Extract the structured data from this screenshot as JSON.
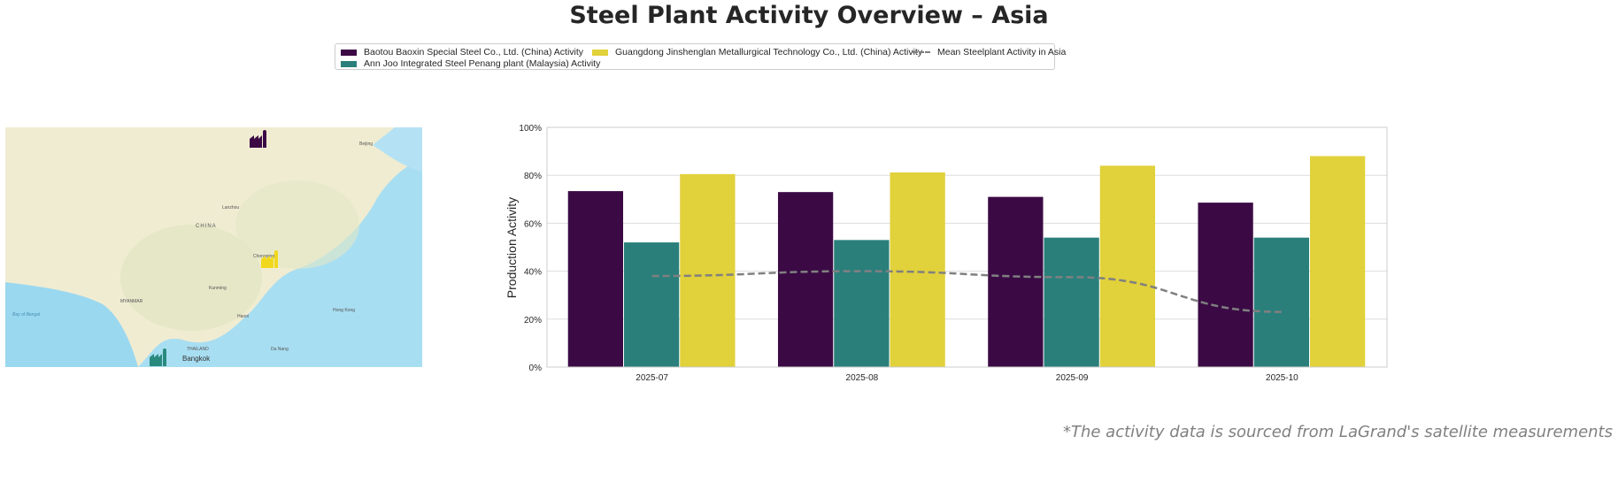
{
  "title": "Steel Plant Activity Overview – Asia",
  "legend": {
    "items": [
      {
        "label": "Baotou Baoxin Special Steel Co., Ltd. (China) Activity",
        "color": "#3b0a45"
      },
      {
        "label": "Ann Joo Integrated Steel Penang plant (Malaysia) Activity",
        "color": "#2a7f7b"
      },
      {
        "label": "Guangdong Jinshenglan Metallurgical Technology Co., Ltd. (China) Activity",
        "color": "#e1d13a"
      },
      {
        "label": "Mean Steelplant Activity in Asia",
        "color": "#808080"
      }
    ]
  },
  "map": {
    "labels": [
      "CHINA",
      "Bay of Bengal",
      "Hong Kong",
      "Beijing",
      "THAILAND",
      "Bangkok",
      "Hanoi",
      "MYANMAR",
      "Lanzhou",
      "Chongqing",
      "Kunming",
      "Da Nang"
    ],
    "markers": [
      {
        "plant": "Baotou Baoxin Special Steel Co., Ltd.",
        "icon": "factory-icon",
        "color": "#3b0a45"
      },
      {
        "plant": "Guangdong Jinshenglan Metallurgical Technology Co., Ltd.",
        "icon": "factory-icon",
        "color": "#f2d81c"
      },
      {
        "plant": "Ann Joo Integrated Steel Penang plant",
        "icon": "factory-icon",
        "color": "#2a8a7e"
      }
    ]
  },
  "chart_data": {
    "type": "bar",
    "categories": [
      "2025-07",
      "2025-08",
      "2025-09",
      "2025-10"
    ],
    "series": [
      {
        "name": "Baotou Baoxin Special Steel Co., Ltd. (China) Activity",
        "color": "#3b0a45",
        "values": [
          73.4,
          73,
          71,
          68.6
        ]
      },
      {
        "name": "Ann Joo Integrated Steel Penang plant (Malaysia) Activity",
        "color": "#2a7f7b",
        "values": [
          52,
          53,
          54,
          54
        ]
      },
      {
        "name": "Guangdong Jinshenglan Metallurgical Technology Co., Ltd. (China) Activity",
        "color": "#e1d13a",
        "values": [
          80.5,
          81.2,
          84,
          88
        ]
      }
    ],
    "line": {
      "name": "Mean Steelplant Activity in Asia",
      "color": "#808080",
      "style": "dashed",
      "values": [
        38,
        40,
        37.5,
        23
      ]
    },
    "ylabel": "Production Activity",
    "xlabel": "",
    "ylim": [
      0,
      100
    ],
    "yticks": [
      "0%",
      "20%",
      "40%",
      "60%",
      "80%",
      "100%"
    ],
    "grid": true
  },
  "footnote": "*The activity data is sourced from LaGrand's satellite measurements"
}
